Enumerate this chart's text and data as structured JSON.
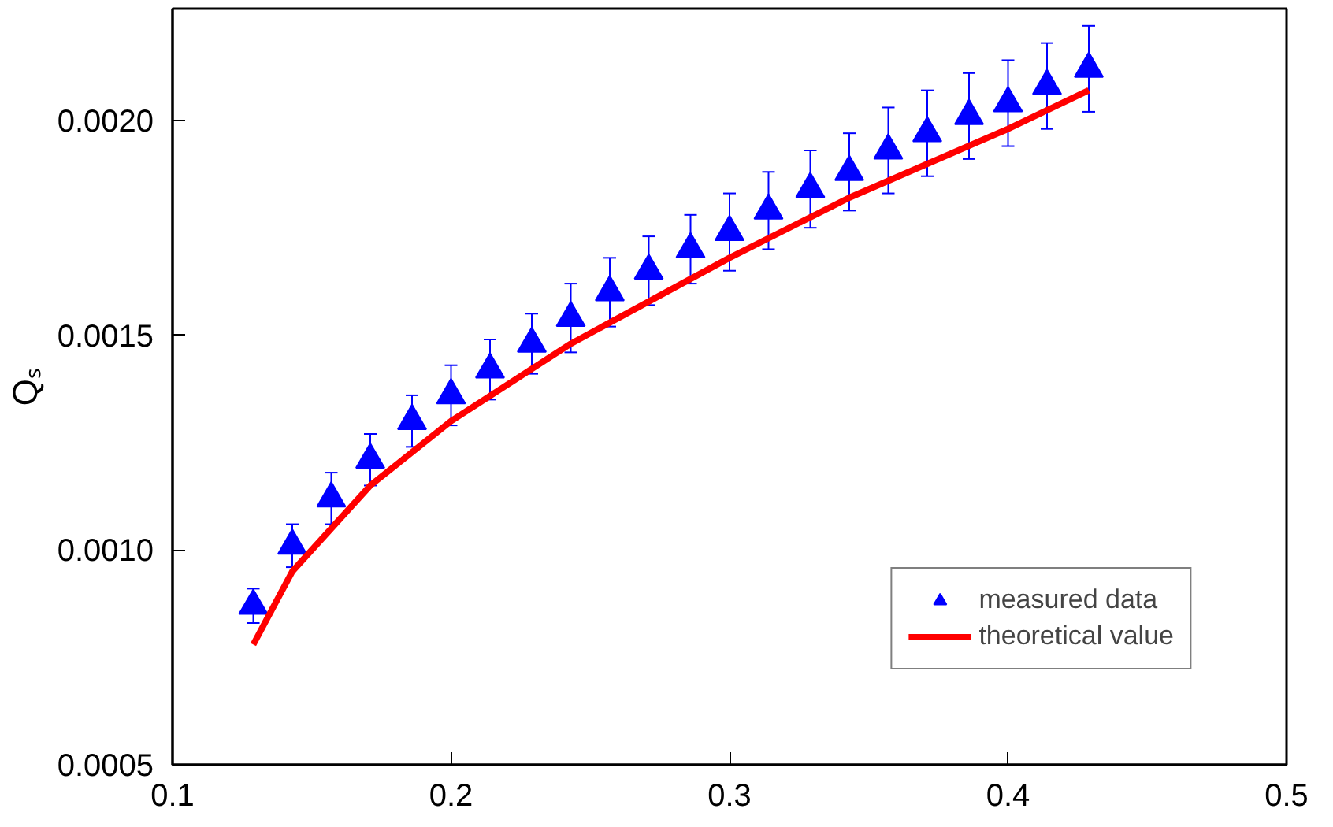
{
  "chart_data": {
    "type": "scatter",
    "ylabel": "Qₛ",
    "xlim": [
      0.1,
      0.5
    ],
    "ylim": [
      0.0005,
      0.00226
    ],
    "xticks": [
      0.1,
      0.2,
      0.3,
      0.4,
      0.5
    ],
    "yticks": [
      {
        "value": 0.0005,
        "label": "0.0005"
      },
      {
        "value": 0.001,
        "label": "0.0010"
      },
      {
        "value": 0.0015,
        "label": "0.0015"
      },
      {
        "value": 0.002,
        "label": "0.0020"
      }
    ],
    "grid": false,
    "legend": "bottom right",
    "series": [
      {
        "name": "measured data",
        "marker": "triangle",
        "color": "#0000ff",
        "x": [
          0.129,
          0.143,
          0.157,
          0.171,
          0.186,
          0.2,
          0.214,
          0.229,
          0.243,
          0.257,
          0.271,
          0.286,
          0.3,
          0.314,
          0.329,
          0.343,
          0.357,
          0.371,
          0.386,
          0.4,
          0.414,
          0.429
        ],
        "values": [
          0.00087,
          0.00101,
          0.00112,
          0.00121,
          0.0013,
          0.00136,
          0.00142,
          0.00148,
          0.00154,
          0.0016,
          0.00165,
          0.0017,
          0.00174,
          0.00179,
          0.00184,
          0.00188,
          0.00193,
          0.00197,
          0.00201,
          0.00204,
          0.00208,
          0.00212
        ],
        "errors": [
          4e-05,
          5e-05,
          6e-05,
          6e-05,
          6e-05,
          7e-05,
          7e-05,
          7e-05,
          8e-05,
          8e-05,
          8e-05,
          8e-05,
          9e-05,
          9e-05,
          9e-05,
          9e-05,
          0.0001,
          0.0001,
          0.0001,
          0.0001,
          0.0001,
          0.0001
        ]
      },
      {
        "name": "theoretical value",
        "type": "line",
        "marker": "none",
        "line_style": "solid",
        "color": "#ff0000",
        "x": [
          0.129,
          0.143,
          0.157,
          0.171,
          0.2,
          0.243,
          0.3,
          0.343,
          0.4,
          0.429
        ],
        "values": [
          0.00078,
          0.00095,
          0.00105,
          0.00115,
          0.0013,
          0.00148,
          0.00168,
          0.00182,
          0.00198,
          0.00207
        ]
      }
    ]
  }
}
